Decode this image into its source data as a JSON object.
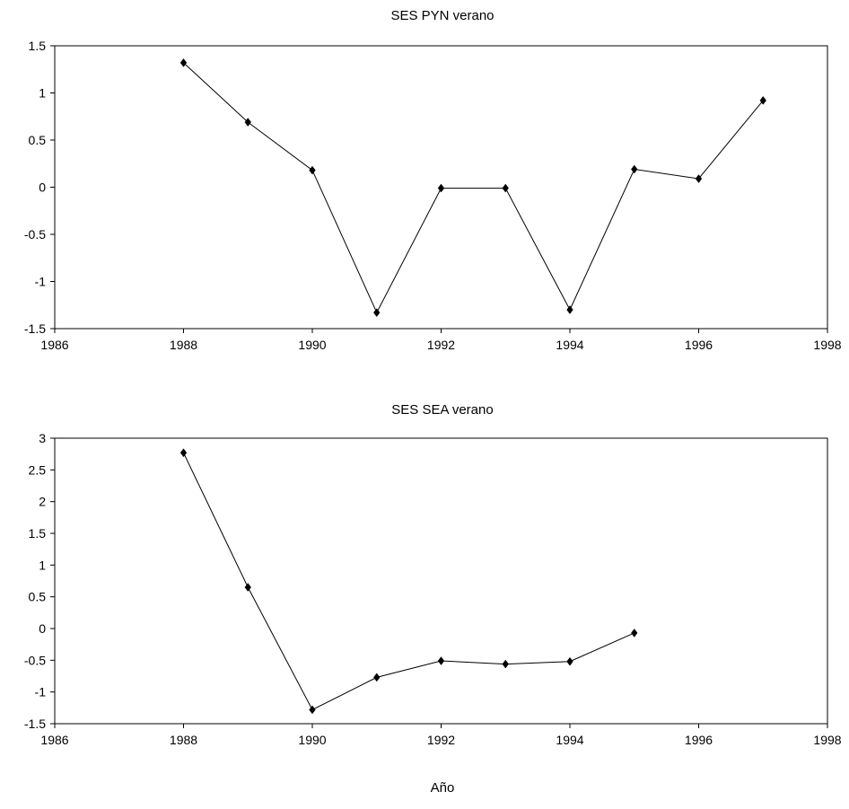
{
  "xlabel": "Año",
  "chart_data": [
    {
      "type": "line",
      "title": "SES PYN verano",
      "xlim": [
        1986,
        1998
      ],
      "ylim": [
        -1.5,
        1.5
      ],
      "xticks": [
        1986,
        1988,
        1990,
        1992,
        1994,
        1996,
        1998
      ],
      "yticks": [
        -1.5,
        -1,
        -0.5,
        0,
        0.5,
        1,
        1.5
      ],
      "ytick_labels": [
        "-1.5",
        "-1",
        "-0.5",
        "0",
        "0.5",
        "1",
        "1.5"
      ],
      "grid": false,
      "marker": "diamond",
      "x": [
        1988,
        1989,
        1990,
        1991,
        1992,
        1993,
        1994,
        1995,
        1996,
        1997
      ],
      "y": [
        1.32,
        0.69,
        0.18,
        -1.33,
        -0.01,
        -0.01,
        -1.3,
        0.19,
        0.09,
        0.92
      ]
    },
    {
      "type": "line",
      "title": "SES SEA verano",
      "xlim": [
        1986,
        1998
      ],
      "ylim": [
        -1.5,
        3
      ],
      "xticks": [
        1986,
        1988,
        1990,
        1992,
        1994,
        1996,
        1998
      ],
      "yticks": [
        -1.5,
        -1,
        -0.5,
        0,
        0.5,
        1,
        1.5,
        2,
        2.5,
        3
      ],
      "ytick_labels": [
        "-1.5",
        "-1",
        "-0.5",
        "0",
        "0.5",
        "1",
        "1.5",
        "2",
        "2.5",
        "3"
      ],
      "grid": false,
      "marker": "diamond",
      "x": [
        1988,
        1989,
        1990,
        1991,
        1992,
        1993,
        1994,
        1995
      ],
      "y": [
        2.77,
        0.65,
        -1.28,
        -0.77,
        -0.51,
        -0.56,
        -0.52,
        -0.07
      ]
    }
  ]
}
